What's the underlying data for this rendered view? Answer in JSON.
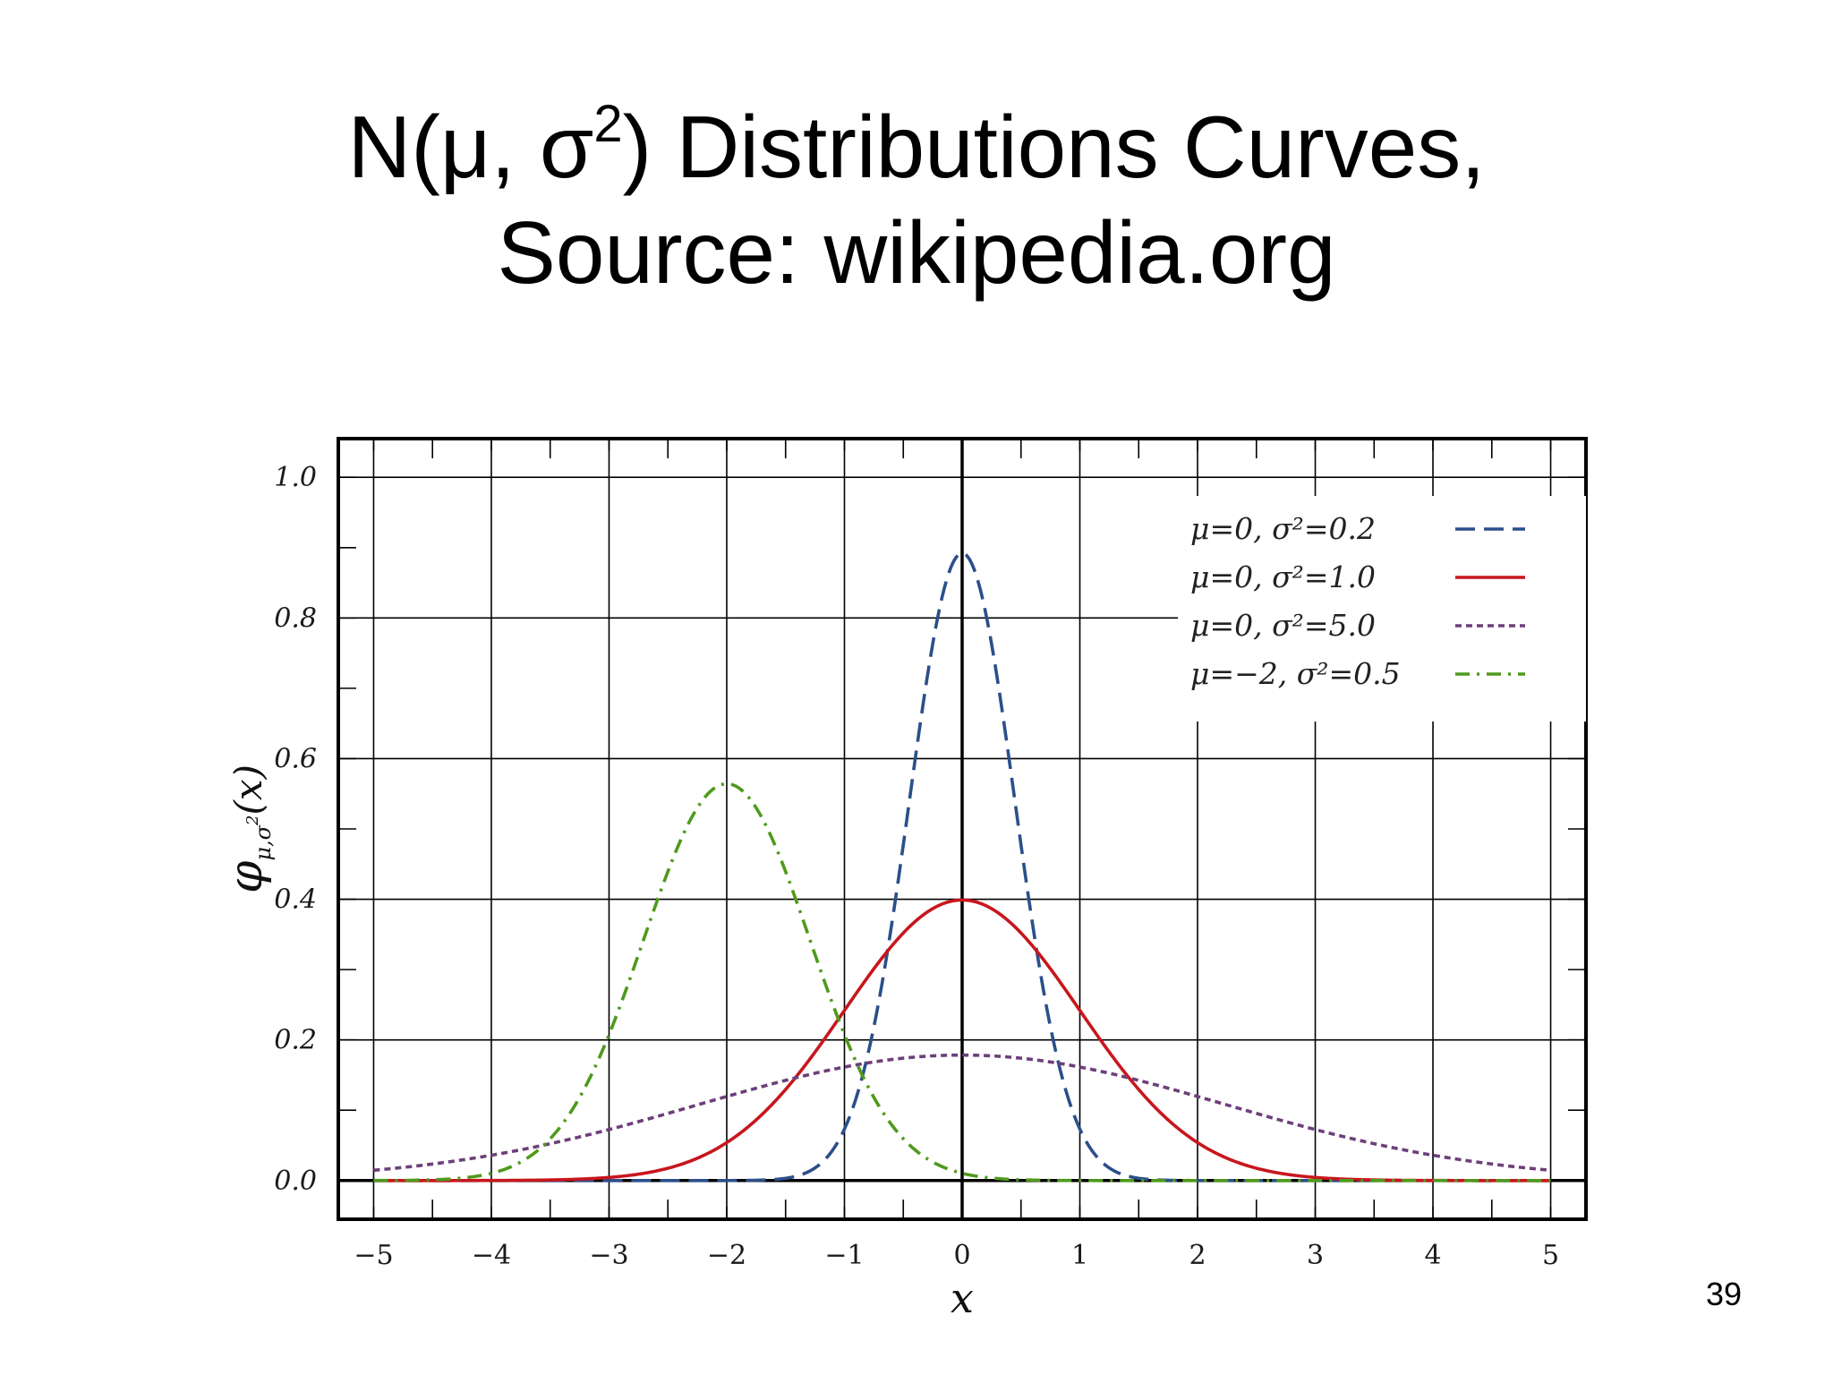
{
  "slide": {
    "title_main": "N(μ, σ",
    "title_sup": "2",
    "title_end": ") Distributions Curves,",
    "title_line2": "Source:  wikipedia.org",
    "page_number": "39"
  },
  "chart_data": {
    "type": "line",
    "xlabel": "x",
    "ylabel": "φμ,σ²(x)",
    "ylabel_main": "φ",
    "ylabel_sub": "μ,σ",
    "ylabel_sup": "2",
    "ylabel_arg": "(x)",
    "xlim": [
      -5.3,
      5.3
    ],
    "ylim": [
      -0.055,
      1.055
    ],
    "xticks": [
      -5,
      -4,
      -3,
      -2,
      -1,
      0,
      1,
      2,
      3,
      4,
      5
    ],
    "xtick_labels": [
      "−5",
      "−4",
      "−3",
      "−2",
      "−1",
      "0",
      "1",
      "2",
      "3",
      "4",
      "5"
    ],
    "yticks": [
      0.0,
      0.2,
      0.4,
      0.6,
      0.8,
      1.0
    ],
    "ytick_labels": [
      "0.0",
      "0.2",
      "0.4",
      "0.6",
      "0.8",
      "1.0"
    ],
    "grid": true,
    "legend_position": "top-right",
    "x_range": [
      -5,
      5
    ],
    "series": [
      {
        "name": "μ=0,    σ²=0.2",
        "mu": 0,
        "variance": 0.2,
        "color": "#2b4f8a",
        "style": "dashed",
        "peak": {
          "x": 0,
          "y": 0.89
        }
      },
      {
        "name": "μ=0,    σ²=1.0",
        "mu": 0,
        "variance": 1.0,
        "color": "#c8161d",
        "style": "solid",
        "peak": {
          "x": 0,
          "y": 0.4
        }
      },
      {
        "name": "μ=0,    σ²=5.0",
        "mu": 0,
        "variance": 5.0,
        "color": "#6d3f7a",
        "style": "dotted",
        "peak": {
          "x": 0,
          "y": 0.18
        }
      },
      {
        "name": "μ=−2, σ²=0.5",
        "mu": -2,
        "variance": 0.5,
        "color": "#4f9a1c",
        "style": "dashdot",
        "peak": {
          "x": -2,
          "y": 0.56
        }
      }
    ]
  }
}
